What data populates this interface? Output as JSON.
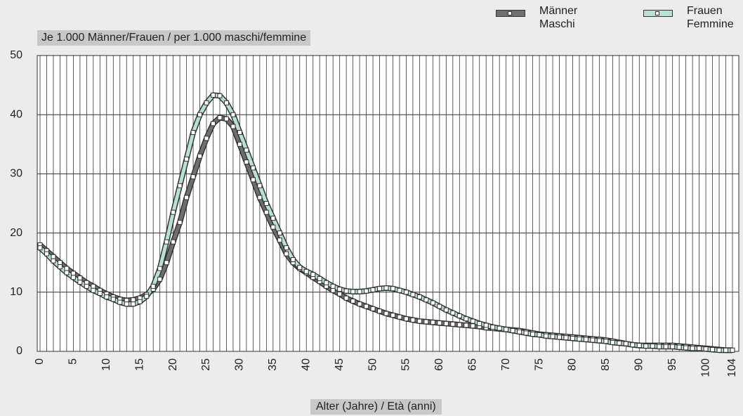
{
  "chart_data": {
    "type": "line",
    "y_label": "Je 1.000 Männer/Frauen / per 1.000 maschi/femmine",
    "x_label": "Alter (Jahre) / Età (anni)",
    "x": [
      0,
      1,
      2,
      3,
      4,
      5,
      6,
      7,
      8,
      9,
      10,
      11,
      12,
      13,
      14,
      15,
      16,
      17,
      18,
      19,
      20,
      21,
      22,
      23,
      24,
      25,
      26,
      27,
      28,
      29,
      30,
      31,
      32,
      33,
      34,
      35,
      36,
      37,
      38,
      39,
      40,
      41,
      42,
      43,
      44,
      45,
      46,
      47,
      48,
      49,
      50,
      51,
      52,
      53,
      54,
      55,
      56,
      57,
      58,
      59,
      60,
      61,
      62,
      63,
      64,
      65,
      66,
      67,
      68,
      69,
      70,
      71,
      72,
      73,
      74,
      75,
      76,
      77,
      78,
      79,
      80,
      81,
      82,
      83,
      84,
      85,
      86,
      87,
      88,
      89,
      90,
      91,
      92,
      93,
      94,
      95,
      96,
      97,
      98,
      99,
      100,
      101,
      102,
      103,
      104
    ],
    "series": [
      {
        "name": "Männer\nMaschi",
        "color": "#6f6f6f",
        "values": [
          18,
          17,
          16,
          15,
          14,
          13.2,
          12.4,
          11.6,
          11,
          10.3,
          9.7,
          9.2,
          8.8,
          8.6,
          8.7,
          9,
          9.6,
          10.5,
          12.2,
          15,
          18.5,
          21.8,
          26,
          29.5,
          33,
          36,
          38.5,
          39.5,
          39.3,
          38,
          35,
          32,
          29,
          26,
          23.5,
          21,
          18.8,
          16.5,
          15,
          14,
          13.3,
          12.5,
          11.8,
          11,
          10.3,
          9.7,
          9,
          8.5,
          8,
          7.6,
          7.2,
          6.8,
          6.4,
          6.1,
          5.8,
          5.5,
          5.3,
          5.1,
          5,
          4.9,
          4.8,
          4.7,
          4.6,
          4.5,
          4.4,
          4.3,
          4.2,
          4,
          3.9,
          3.8,
          3.7,
          3.6,
          3.5,
          3.3,
          3.1,
          2.9,
          2.8,
          2.7,
          2.6,
          2.5,
          2.4,
          2.3,
          2.2,
          2.1,
          2,
          1.9,
          1.7,
          1.5,
          1.3,
          1.1,
          1,
          1,
          1,
          1,
          1,
          1,
          0.9,
          0.8,
          0.7,
          0.6,
          0.5,
          0.4,
          0.3,
          0.2,
          0.2
        ]
      },
      {
        "name": "Frauen\nFemmine",
        "color": "#b8e0d5",
        "values": [
          17.5,
          16.5,
          15.3,
          14.3,
          13.3,
          12.5,
          11.7,
          11,
          10.3,
          9.8,
          9.2,
          8.8,
          8.3,
          8,
          8,
          8.4,
          9.3,
          11,
          14,
          18.5,
          23.5,
          28,
          32.5,
          37,
          40,
          42,
          43.3,
          43.2,
          42,
          40,
          37,
          34,
          31,
          28,
          25,
          22.5,
          20,
          17.5,
          15.5,
          14.2,
          13.5,
          13,
          12.3,
          11.6,
          11,
          10.5,
          10.2,
          10.1,
          10.1,
          10.2,
          10.4,
          10.6,
          10.7,
          10.6,
          10.3,
          10,
          9.6,
          9.2,
          8.7,
          8.2,
          7.6,
          7,
          6.5,
          6,
          5.5,
          5.1,
          4.7,
          4.4,
          4.1,
          3.9,
          3.7,
          3.5,
          3.3,
          3.1,
          2.9,
          2.8,
          2.6,
          2.5,
          2.4,
          2.3,
          2.2,
          2.1,
          2,
          1.9,
          1.8,
          1.7,
          1.5,
          1.4,
          1.3,
          1.1,
          1,
          0.9,
          0.9,
          0.8,
          0.8,
          0.8,
          0.7,
          0.6,
          0.5,
          0.5,
          0.4,
          0.3,
          0.2,
          0.2,
          0.2
        ]
      }
    ],
    "xlim": [
      0,
      104
    ],
    "xticks": [
      0,
      5,
      10,
      15,
      20,
      25,
      30,
      35,
      40,
      45,
      50,
      55,
      60,
      65,
      70,
      75,
      80,
      85,
      90,
      95,
      100,
      104
    ],
    "ylim": [
      0,
      50
    ],
    "yticks": [
      0,
      10,
      20,
      30,
      40,
      50
    ],
    "grid": true
  }
}
